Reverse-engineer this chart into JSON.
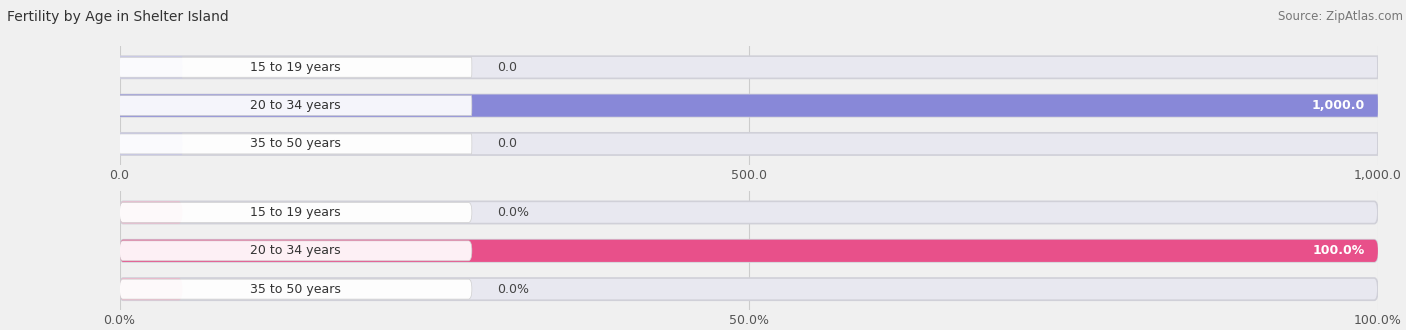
{
  "title": "Fertility by Age in Shelter Island",
  "source": "Source: ZipAtlas.com",
  "top_chart": {
    "categories": [
      "15 to 19 years",
      "20 to 34 years",
      "35 to 50 years"
    ],
    "values": [
      0.0,
      1000.0,
      0.0
    ],
    "bar_color_full": "#8888d8",
    "bar_color_empty": "#c8c8e8",
    "value_label": [
      "0.0",
      "1,000.0",
      "0.0"
    ],
    "xlim": [
      0,
      1000
    ],
    "xticks": [
      0.0,
      500.0,
      1000.0
    ],
    "xtick_labels": [
      "0.0",
      "500.0",
      "1,000.0"
    ]
  },
  "bottom_chart": {
    "categories": [
      "15 to 19 years",
      "20 to 34 years",
      "35 to 50 years"
    ],
    "values": [
      0.0,
      100.0,
      0.0
    ],
    "bar_color_full": "#e8508a",
    "bar_color_empty": "#f0b8cc",
    "value_label": [
      "0.0%",
      "100.0%",
      "0.0%"
    ],
    "xlim": [
      0,
      100
    ],
    "xticks": [
      0.0,
      50.0,
      100.0
    ],
    "xtick_labels": [
      "0.0%",
      "50.0%",
      "100.0%"
    ]
  },
  "bg_color": "#f0f0f0",
  "label_fontsize": 9,
  "tick_fontsize": 9,
  "title_fontsize": 10,
  "source_fontsize": 8.5
}
